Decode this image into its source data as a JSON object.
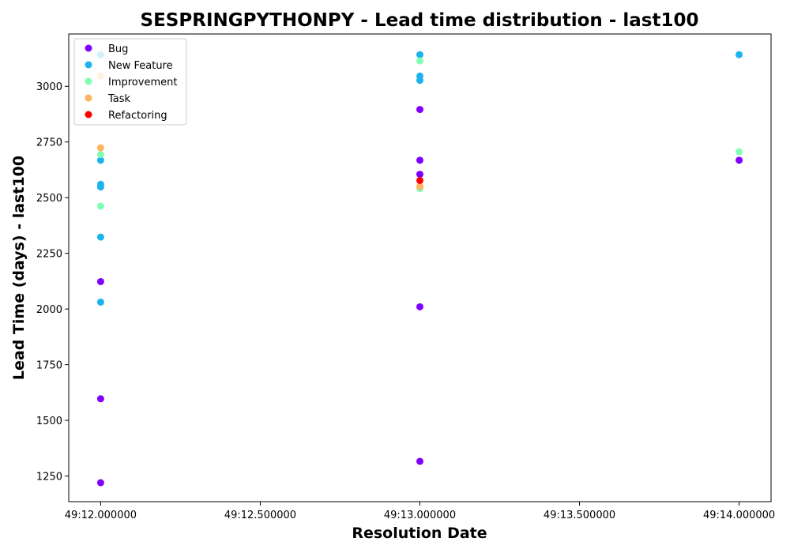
{
  "chart_data": {
    "type": "scatter",
    "title": "SESPRINGPYTHONPY - Lead time distribution - last100",
    "xlabel": "Resolution Date",
    "ylabel": "Lead Time (days) - last100",
    "x_ticks": [
      "49:12.000000",
      "49:12.500000",
      "49:13.000000",
      "49:13.500000",
      "49:14.000000"
    ],
    "x_tick_values": [
      0,
      0.5,
      1.0,
      1.5,
      2.0
    ],
    "xlim": [
      -0.1,
      2.1
    ],
    "ylim": [
      1135,
      3235
    ],
    "y_ticks": [
      1250,
      1500,
      1750,
      2000,
      2250,
      2500,
      2750,
      3000
    ],
    "grid": false,
    "legend_position": "top-left",
    "series": [
      {
        "name": "Bug",
        "color": "#8000ff",
        "points": [
          {
            "x": "49:12",
            "y": 1220
          },
          {
            "x": "49:12",
            "y": 1597
          },
          {
            "x": "49:12",
            "y": 2123
          },
          {
            "x": "49:13",
            "y": 1316
          },
          {
            "x": "49:13",
            "y": 2010
          },
          {
            "x": "49:13",
            "y": 2605
          },
          {
            "x": "49:13",
            "y": 2668
          },
          {
            "x": "49:13",
            "y": 2896
          },
          {
            "x": "49:14",
            "y": 2668
          }
        ]
      },
      {
        "name": "New Feature",
        "color": "#1cb3ec",
        "points": [
          {
            "x": "49:12",
            "y": 2031
          },
          {
            "x": "49:12",
            "y": 2323
          },
          {
            "x": "49:12",
            "y": 2548
          },
          {
            "x": "49:12",
            "y": 2560
          },
          {
            "x": "49:12",
            "y": 2668
          },
          {
            "x": "49:12",
            "y": 3142
          },
          {
            "x": "49:13",
            "y": 3027
          },
          {
            "x": "49:13",
            "y": 3046
          },
          {
            "x": "49:13",
            "y": 3142
          },
          {
            "x": "49:14",
            "y": 3142
          }
        ]
      },
      {
        "name": "Improvement",
        "color": "#80ffb4",
        "points": [
          {
            "x": "49:12",
            "y": 2462
          },
          {
            "x": "49:12",
            "y": 2694
          },
          {
            "x": "49:13",
            "y": 2541
          },
          {
            "x": "49:13",
            "y": 3114
          },
          {
            "x": "49:14",
            "y": 2706
          }
        ]
      },
      {
        "name": "Task",
        "color": "#ffb360",
        "points": [
          {
            "x": "49:12",
            "y": 2724
          },
          {
            "x": "49:12",
            "y": 3046
          },
          {
            "x": "49:13",
            "y": 2550
          }
        ]
      },
      {
        "name": "Refactoring",
        "color": "#ff0000",
        "points": [
          {
            "x": "49:13",
            "y": 2577
          }
        ]
      }
    ]
  }
}
